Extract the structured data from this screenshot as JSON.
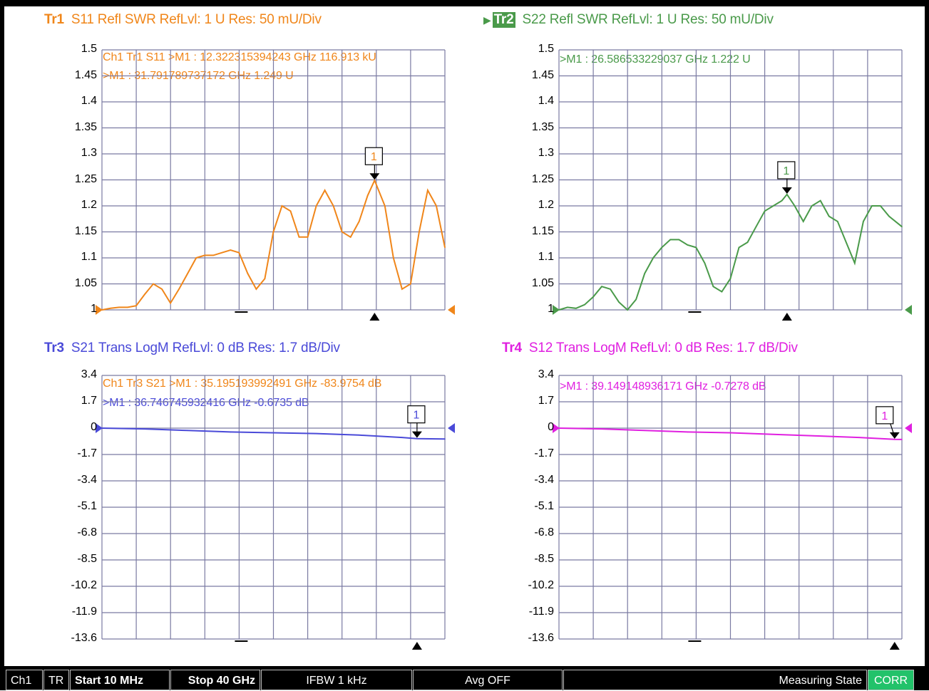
{
  "panels": [
    {
      "trace": "Tr1",
      "title": "S11 Refl SWR RefLvl: 1  U Res: 50 mU/Div",
      "color": "#f0861a",
      "yticks": [
        "1.5",
        "1.45",
        "1.4",
        "1.35",
        "1.3",
        "1.25",
        "1.2",
        "1.15",
        "1.1",
        "1.05",
        "1"
      ],
      "marker_lines": [
        "Ch1 Tr1  S11 >M1 :   12.322315394243 GHz 116.913 kU",
        ">M1 :   31.791789737172 GHz  1.249  U"
      ],
      "marker_label": "1"
    },
    {
      "trace": "Tr2",
      "title": "S22 Refl SWR RefLvl: 1  U Res: 50 mU/Div",
      "color": "#4a9a4a",
      "yticks": [
        "1.5",
        "1.45",
        "1.4",
        "1.35",
        "1.3",
        "1.25",
        "1.2",
        "1.15",
        "1.1",
        "1.05",
        "1"
      ],
      "marker_lines": [
        ">M1 :   26.586533229037 GHz  1.222  U"
      ],
      "marker_label": "1"
    },
    {
      "trace": "Tr3",
      "title": "S21 Trans LogM RefLvl: 0  dB Res: 1.7  dB/Div",
      "color": "#4a4ad8",
      "yticks": [
        "3.4",
        "1.7",
        "0",
        "-1.7",
        "-3.4",
        "-5.1",
        "-6.8",
        "-8.5",
        "-10.2",
        "-11.9",
        "-13.6"
      ],
      "marker_lines": [
        "Ch1 Tr3  S21 >M1 :   35.195193992491 GHz -83.9754  dB",
        ">M1 :   36.746745932416 GHz  -0.6735  dB"
      ],
      "marker_label": "1"
    },
    {
      "trace": "Tr4",
      "title": "S12 Trans LogM RefLvl: 0  dB Res: 1.7  dB/Div",
      "color": "#e020e0",
      "yticks": [
        "3.4",
        "1.7",
        "0",
        "-1.7",
        "-3.4",
        "-5.1",
        "-6.8",
        "-8.5",
        "-10.2",
        "-11.9",
        "-13.6"
      ],
      "marker_lines": [
        ">M1 :   39.149148936171 GHz  -0.7278  dB"
      ],
      "marker_label": "1"
    }
  ],
  "chart_data": [
    {
      "type": "line",
      "title": "S11 Refl SWR",
      "x": [
        0.01,
        1,
        2,
        3,
        4,
        5,
        6,
        7,
        8,
        9,
        10,
        11,
        12,
        13,
        14,
        15,
        16,
        17,
        18,
        19,
        20,
        21,
        22,
        23,
        24,
        25,
        26,
        27,
        28,
        29,
        30,
        31,
        31.8,
        33,
        34,
        35,
        36,
        37,
        38,
        39,
        40
      ],
      "values": [
        1.0,
        1.003,
        1.005,
        1.005,
        1.008,
        1.03,
        1.05,
        1.04,
        1.013,
        1.04,
        1.07,
        1.1,
        1.105,
        1.105,
        1.11,
        1.115,
        1.11,
        1.07,
        1.04,
        1.06,
        1.15,
        1.2,
        1.19,
        1.14,
        1.14,
        1.2,
        1.23,
        1.2,
        1.15,
        1.14,
        1.17,
        1.22,
        1.249,
        1.2,
        1.1,
        1.04,
        1.05,
        1.15,
        1.23,
        1.2,
        1.12
      ],
      "xlim": [
        0.01,
        40
      ],
      "ylim": [
        1,
        1.5
      ]
    },
    {
      "type": "line",
      "title": "S22 Refl SWR",
      "x": [
        0.01,
        1,
        2,
        3,
        4,
        5,
        6,
        7,
        8,
        9,
        10,
        11,
        12,
        13,
        14,
        15,
        16,
        17,
        18,
        19,
        20,
        21,
        22,
        23,
        24,
        25,
        26,
        26.6,
        27.5,
        28.5,
        29.5,
        30.5,
        31.5,
        32.5,
        33.5,
        34.5,
        35.5,
        36.5,
        37.5,
        38.5,
        40
      ],
      "values": [
        1.0,
        1.005,
        1.003,
        1.01,
        1.025,
        1.045,
        1.04,
        1.015,
        1.0,
        1.02,
        1.07,
        1.1,
        1.12,
        1.135,
        1.135,
        1.125,
        1.12,
        1.09,
        1.045,
        1.035,
        1.06,
        1.12,
        1.13,
        1.16,
        1.19,
        1.2,
        1.21,
        1.222,
        1.2,
        1.17,
        1.2,
        1.21,
        1.18,
        1.17,
        1.13,
        1.09,
        1.17,
        1.2,
        1.2,
        1.18,
        1.16
      ],
      "xlim": [
        0.01,
        40
      ],
      "ylim": [
        1,
        1.5
      ]
    },
    {
      "type": "line",
      "title": "S21 Trans LogM",
      "x": [
        0.01,
        5,
        10,
        15,
        20,
        25,
        30,
        35,
        36.75,
        40
      ],
      "values": [
        0.0,
        -0.05,
        -0.15,
        -0.25,
        -0.3,
        -0.35,
        -0.45,
        -0.6,
        -0.6735,
        -0.7
      ],
      "xlim": [
        0.01,
        40
      ],
      "ylim": [
        -13.6,
        3.4
      ]
    },
    {
      "type": "line",
      "title": "S12 Trans LogM",
      "x": [
        0.01,
        5,
        10,
        15,
        20,
        25,
        30,
        35,
        39.15,
        40
      ],
      "values": [
        0.0,
        -0.05,
        -0.15,
        -0.25,
        -0.3,
        -0.4,
        -0.5,
        -0.6,
        -0.7278,
        -0.73
      ],
      "xlim": [
        0.01,
        40
      ],
      "ylim": [
        -13.6,
        3.4
      ]
    }
  ],
  "markers": [
    {
      "x": 31.8,
      "y": 1.249
    },
    {
      "x": 26.6,
      "y": 1.222
    },
    {
      "x": 36.75,
      "y": -0.6735
    },
    {
      "x": 39.15,
      "y": -0.7278
    }
  ],
  "statusbar": {
    "channel": "Ch1",
    "mode": "TR",
    "start": "Start 10 MHz",
    "stop": "Stop 40 GHz",
    "ifbw": "IFBW 1 kHz",
    "avg": "Avg OFF",
    "state": "Measuring State",
    "corr": "CORR",
    "corr_color": "#22c26a"
  }
}
